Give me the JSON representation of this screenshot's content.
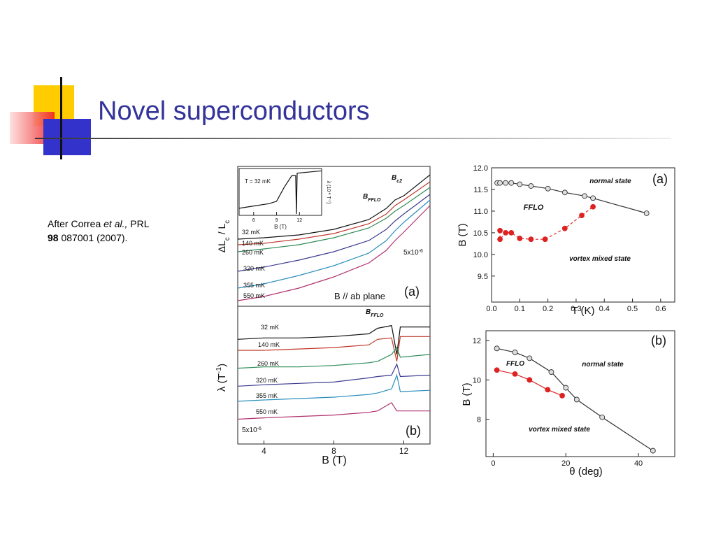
{
  "header": {
    "title": "Novel superconductors"
  },
  "citation": {
    "text1": "After Correa",
    "italic": "et al.,",
    "text2": "PRL",
    "volume": "98",
    "rest": "087001 (2007)."
  },
  "chart_data": [
    {
      "type": "line",
      "ylabel": {
        "parts": [
          {
            "text": "ΔL"
          },
          {
            "text": "c",
            "style": "sub"
          },
          {
            "text": " / L"
          },
          {
            "text": "c",
            "style": "sub"
          }
        ]
      },
      "x": [
        2.5,
        4,
        6,
        8,
        10,
        11,
        11.5,
        12,
        13.5
      ],
      "xlim": [
        2.5,
        13.5
      ],
      "ylim": [
        0,
        10
      ],
      "series": [
        {
          "name": "32 mK",
          "color": "#111111",
          "values": [
            4.8,
            4.9,
            5.1,
            5.5,
            6.2,
            7.0,
            7.6,
            7.9,
            9.4
          ]
        },
        {
          "name": "140 mK",
          "color": "#c0392b",
          "values": [
            4.4,
            4.5,
            4.8,
            5.2,
            5.9,
            6.6,
            7.2,
            7.6,
            8.9
          ]
        },
        {
          "name": "260 mK",
          "color": "#2e8b57",
          "values": [
            3.9,
            4.1,
            4.4,
            4.9,
            5.6,
            6.3,
            6.8,
            7.2,
            8.5
          ]
        },
        {
          "name": "320 mK",
          "color": "#3b3b8f",
          "values": [
            2.5,
            2.8,
            3.3,
            3.9,
            4.7,
            5.5,
            6.1,
            6.6,
            8.0
          ]
        },
        {
          "name": "355 mK",
          "color": "#2a8fbd",
          "values": [
            1.3,
            1.6,
            2.2,
            2.9,
            3.8,
            4.7,
            5.4,
            6.0,
            7.6
          ]
        },
        {
          "name": "550 mK",
          "color": "#b0306e",
          "values": [
            0.4,
            0.7,
            1.3,
            2.1,
            3.1,
            4.0,
            4.7,
            5.3,
            7.2
          ]
        }
      ],
      "annotations": [
        {
          "parts": [
            {
              "text": "B"
            },
            {
              "text": "FFLO",
              "style": "sub"
            }
          ]
        },
        {
          "parts": [
            {
              "text": "B"
            },
            {
              "text": "c2",
              "style": "sub"
            }
          ]
        },
        {
          "parts": [
            {
              "text": "5x10"
            },
            {
              "text": "-6",
              "style": "sup"
            }
          ]
        },
        "B // ab plane",
        "(a)"
      ]
    },
    {
      "type": "line",
      "xlabel": "B (T)",
      "ylabel": {
        "parts": [
          {
            "text": "λ (10"
          },
          {
            "text": "-6",
            "style": "sup"
          },
          {
            "text": " T"
          },
          {
            "text": "-1",
            "style": "sup"
          },
          {
            "text": ")"
          }
        ]
      },
      "x": [
        4.1,
        6,
        8,
        9,
        10,
        11,
        11.5,
        11.6,
        11.7,
        14.9
      ],
      "xlim": [
        4.1,
        14.9
      ],
      "ylim": [
        0,
        10
      ],
      "xticks": [
        6,
        9,
        12
      ],
      "series": [
        {
          "color": "#111111",
          "values": [
            1.5,
            2,
            2.5,
            3,
            6,
            8.5,
            8.5,
            0.3,
            9,
            9.5
          ]
        }
      ],
      "annotations": [
        "T = 32 mK"
      ]
    },
    {
      "type": "line",
      "xlabel": "B (T)",
      "ylabel": {
        "parts": [
          {
            "text": "λ (T"
          },
          {
            "text": "-1",
            "style": "sup"
          },
          {
            "text": ")"
          }
        ]
      },
      "x": [
        2.5,
        4,
        6,
        8,
        10,
        10.5,
        11.3,
        11.6,
        11.8,
        13.5
      ],
      "xlim": [
        2.5,
        13.5
      ],
      "ylim": [
        0,
        10
      ],
      "xticks": [
        4,
        8,
        12
      ],
      "series": [
        {
          "name": "32 mK",
          "color": "#111111",
          "values": [
            7.6,
            7.7,
            7.7,
            7.8,
            8.0,
            8.4,
            8.6,
            6.5,
            8.5,
            8.5
          ]
        },
        {
          "name": "140 mK",
          "color": "#c0392b",
          "values": [
            6.8,
            6.8,
            6.9,
            7.0,
            7.2,
            7.6,
            7.7,
            6.0,
            7.8,
            7.8
          ]
        },
        {
          "name": "260 mK",
          "color": "#2e8b57",
          "values": [
            5.5,
            5.6,
            5.6,
            5.7,
            5.9,
            6.0,
            6.5,
            7.0,
            6.3,
            6.5
          ]
        },
        {
          "name": "320 mK",
          "color": "#3b3b8f",
          "values": [
            4.2,
            4.3,
            4.4,
            4.5,
            4.8,
            4.9,
            5.0,
            5.8,
            4.9,
            5.0
          ]
        },
        {
          "name": "355 mK",
          "color": "#2a8fbd",
          "values": [
            3.1,
            3.2,
            3.3,
            3.4,
            3.6,
            3.7,
            4.0,
            5.0,
            3.8,
            3.9
          ]
        },
        {
          "name": "550 mK",
          "color": "#b0306e",
          "values": [
            1.8,
            1.9,
            2.0,
            2.1,
            2.3,
            2.4,
            3.0,
            2.4,
            2.4,
            2.4
          ]
        }
      ],
      "annotations": [
        {
          "parts": [
            {
              "text": "B"
            },
            {
              "text": "FFLO",
              "style": "sub"
            }
          ]
        },
        {
          "parts": [
            {
              "text": "5x10"
            },
            {
              "text": "-6",
              "style": "sup"
            }
          ]
        },
        "(b)"
      ]
    },
    {
      "type": "line",
      "xlabel": "T (K)",
      "ylabel": "B (T)",
      "xlim": [
        0,
        0.65
      ],
      "ylim": [
        8.9,
        12.0
      ],
      "xticks": [
        {
          "value": 0,
          "label": "0.0"
        },
        0.1,
        0.2,
        0.3,
        0.4,
        0.5,
        0.6
      ],
      "yticks": [
        9.5,
        {
          "value": 10,
          "label": "10.0"
        },
        10.5,
        {
          "value": 11,
          "label": "11.0"
        },
        11.5,
        {
          "value": 12,
          "label": "12.0"
        }
      ],
      "series": [
        {
          "color": "#333333",
          "marker": "open",
          "x": [
            0.02,
            0.03,
            0.05,
            0.07,
            0.1,
            0.14,
            0.2,
            0.26,
            0.33,
            0.36,
            0.55
          ],
          "values": [
            11.65,
            11.65,
            11.65,
            11.65,
            11.62,
            11.58,
            11.52,
            11.43,
            11.35,
            11.3,
            10.95
          ]
        },
        {
          "color": "#dd2222",
          "marker": "filled",
          "dash": true,
          "x": [
            0.03,
            0.03,
            0.05,
            0.07,
            0.1,
            0.14,
            0.19,
            0.26,
            0.32,
            0.36
          ],
          "values": [
            10.55,
            10.35,
            10.5,
            10.5,
            10.37,
            10.35,
            10.35,
            10.6,
            10.9,
            11.1
          ]
        }
      ],
      "annotations": [
        "normal state",
        "FFLO",
        "vortex mixed state",
        "(a)"
      ]
    },
    {
      "type": "line",
      "xlabel": "θ (deg)",
      "ylabel": "B (T)",
      "xlim": [
        -2,
        50
      ],
      "ylim": [
        6.1,
        12.5
      ],
      "xticks": [
        0,
        20,
        40
      ],
      "yticks": [
        8,
        10,
        12
      ],
      "series": [
        {
          "color": "#333333",
          "marker": "open",
          "x": [
            1,
            6,
            10,
            16,
            20,
            23,
            30,
            44
          ],
          "values": [
            11.6,
            11.4,
            11.1,
            10.4,
            9.6,
            9.0,
            8.1,
            6.4
          ]
        },
        {
          "color": "#dd2222",
          "marker": "filled",
          "x": [
            1,
            6,
            10,
            15,
            19
          ],
          "values": [
            10.5,
            10.3,
            10.0,
            9.5,
            9.2
          ]
        }
      ],
      "annotations": [
        "normal state",
        "FFLO",
        "vortex mixed state",
        "(b)"
      ]
    }
  ]
}
